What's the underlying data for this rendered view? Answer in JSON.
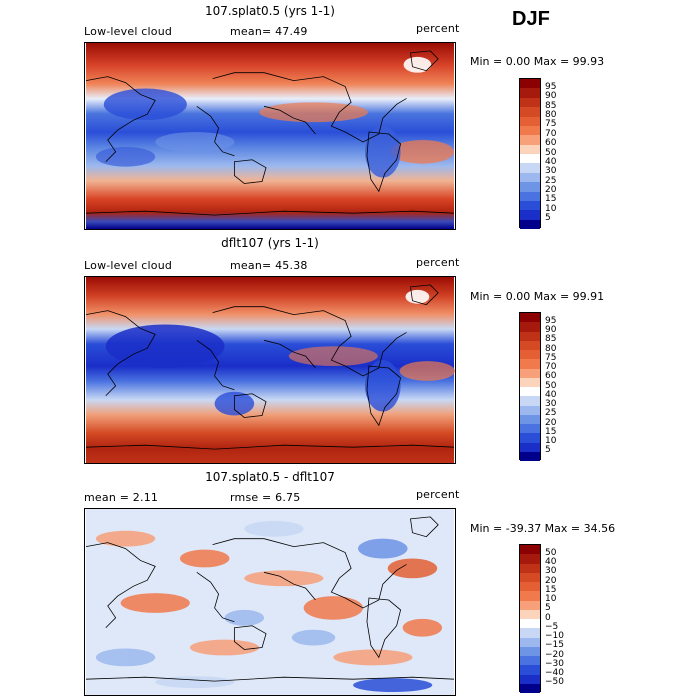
{
  "season": "DJF",
  "panels": [
    {
      "id": "test",
      "title": "107.splat0.5 (yrs 1-1)",
      "left_label": "Low-level cloud",
      "mid_label": "mean=  47.49",
      "right_label": "percent",
      "minmax": "Min =   0.00 Max =  99.93",
      "levels": [
        "95",
        "90",
        "85",
        "80",
        "75",
        "70",
        "60",
        "50",
        "40",
        "30",
        "25",
        "20",
        "15",
        "10",
        "5"
      ],
      "colors": [
        "#8b0000",
        "#a51a0c",
        "#c03218",
        "#d34a24",
        "#e46034",
        "#f07a4c",
        "#f7a07a",
        "#fcd4bc",
        "#ffffff",
        "#c8d8f4",
        "#9cb8ee",
        "#6e94e6",
        "#4a72e0",
        "#2a4ed8",
        "#1a2ec8",
        "#00008b"
      ]
    },
    {
      "id": "control",
      "title": "dflt107 (yrs 1-1)",
      "left_label": "Low-level cloud",
      "mid_label": "mean=  45.38",
      "right_label": "percent",
      "minmax": "Min =   0.00 Max =  99.91",
      "levels": [
        "95",
        "90",
        "85",
        "80",
        "75",
        "70",
        "60",
        "50",
        "40",
        "30",
        "25",
        "20",
        "15",
        "10",
        "5"
      ],
      "colors": [
        "#8b0000",
        "#a51a0c",
        "#c03218",
        "#d34a24",
        "#e46034",
        "#f07a4c",
        "#f7a07a",
        "#fcd4bc",
        "#ffffff",
        "#c8d8f4",
        "#9cb8ee",
        "#6e94e6",
        "#4a72e0",
        "#2a4ed8",
        "#1a2ec8",
        "#00008b"
      ]
    },
    {
      "id": "diff",
      "title": "107.splat0.5 - dflt107",
      "left_label": "mean =    2.11",
      "mid_label": "rmse =   6.75",
      "right_label": "percent",
      "minmax": "Min = -39.37 Max =  34.56",
      "levels": [
        "50",
        "40",
        "30",
        "20",
        "15",
        "10",
        "5",
        "0",
        "−5",
        "−10",
        "−15",
        "−20",
        "−30",
        "−40",
        "−50"
      ],
      "colors": [
        "#8b0000",
        "#a51a0c",
        "#c03218",
        "#d34a24",
        "#e46034",
        "#f07a4c",
        "#f7a07a",
        "#fcd4bc",
        "#ffffff",
        "#c8d8f4",
        "#9cb8ee",
        "#6e94e6",
        "#4a72e0",
        "#2a4ed8",
        "#1a2ec8",
        "#00008b"
      ]
    }
  ]
}
